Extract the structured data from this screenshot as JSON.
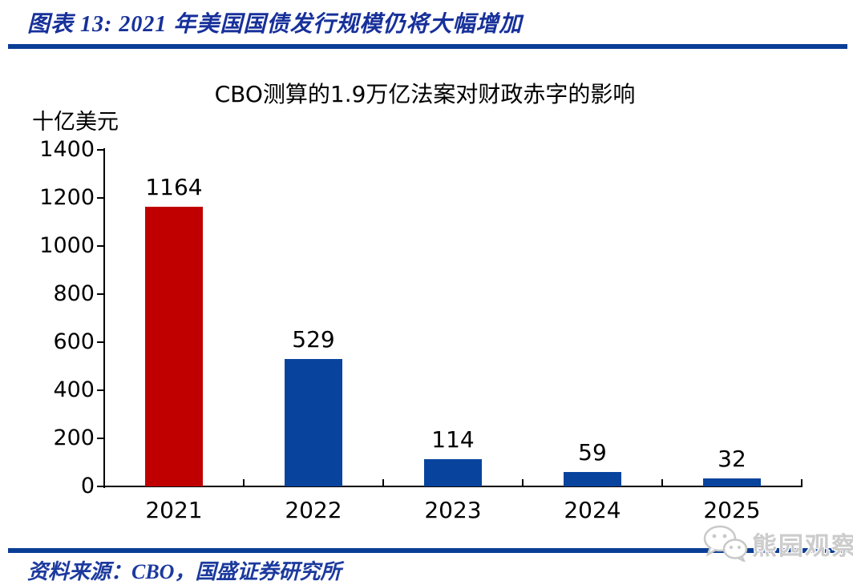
{
  "header": {
    "title": "图表 13:  2021 年美国国债发行规模仍将大幅增加"
  },
  "chart_data": {
    "type": "bar",
    "title": "CBO测算的1.9万亿法案对财政赤字的影响",
    "ylabel": "十亿美元",
    "xlabel": "",
    "categories": [
      "2021",
      "2022",
      "2023",
      "2024",
      "2025"
    ],
    "values": [
      1164,
      529,
      114,
      59,
      32
    ],
    "bar_colors": [
      "#c00000",
      "#08449e",
      "#08449e",
      "#08449e",
      "#08449e"
    ],
    "ylim": [
      0,
      1400
    ],
    "ytick_step": 200,
    "yticks": [
      0,
      200,
      400,
      600,
      800,
      1000,
      1200,
      1400
    ],
    "grid": false,
    "legend": "none",
    "value_labels": true
  },
  "footer": {
    "source_label": "资料来源：CBO，国盛证券研究所"
  },
  "watermark": {
    "label": "熊园观察",
    "icon": "wechat-icon"
  },
  "colors": {
    "accent_rule": "#0a3e96",
    "figure_title_text": "#17309a",
    "source_text": "#1c3a9e",
    "bar_red": "#c00000",
    "bar_blue": "#08449e",
    "axis": "#000000",
    "watermark_gray": "#cccccc"
  }
}
